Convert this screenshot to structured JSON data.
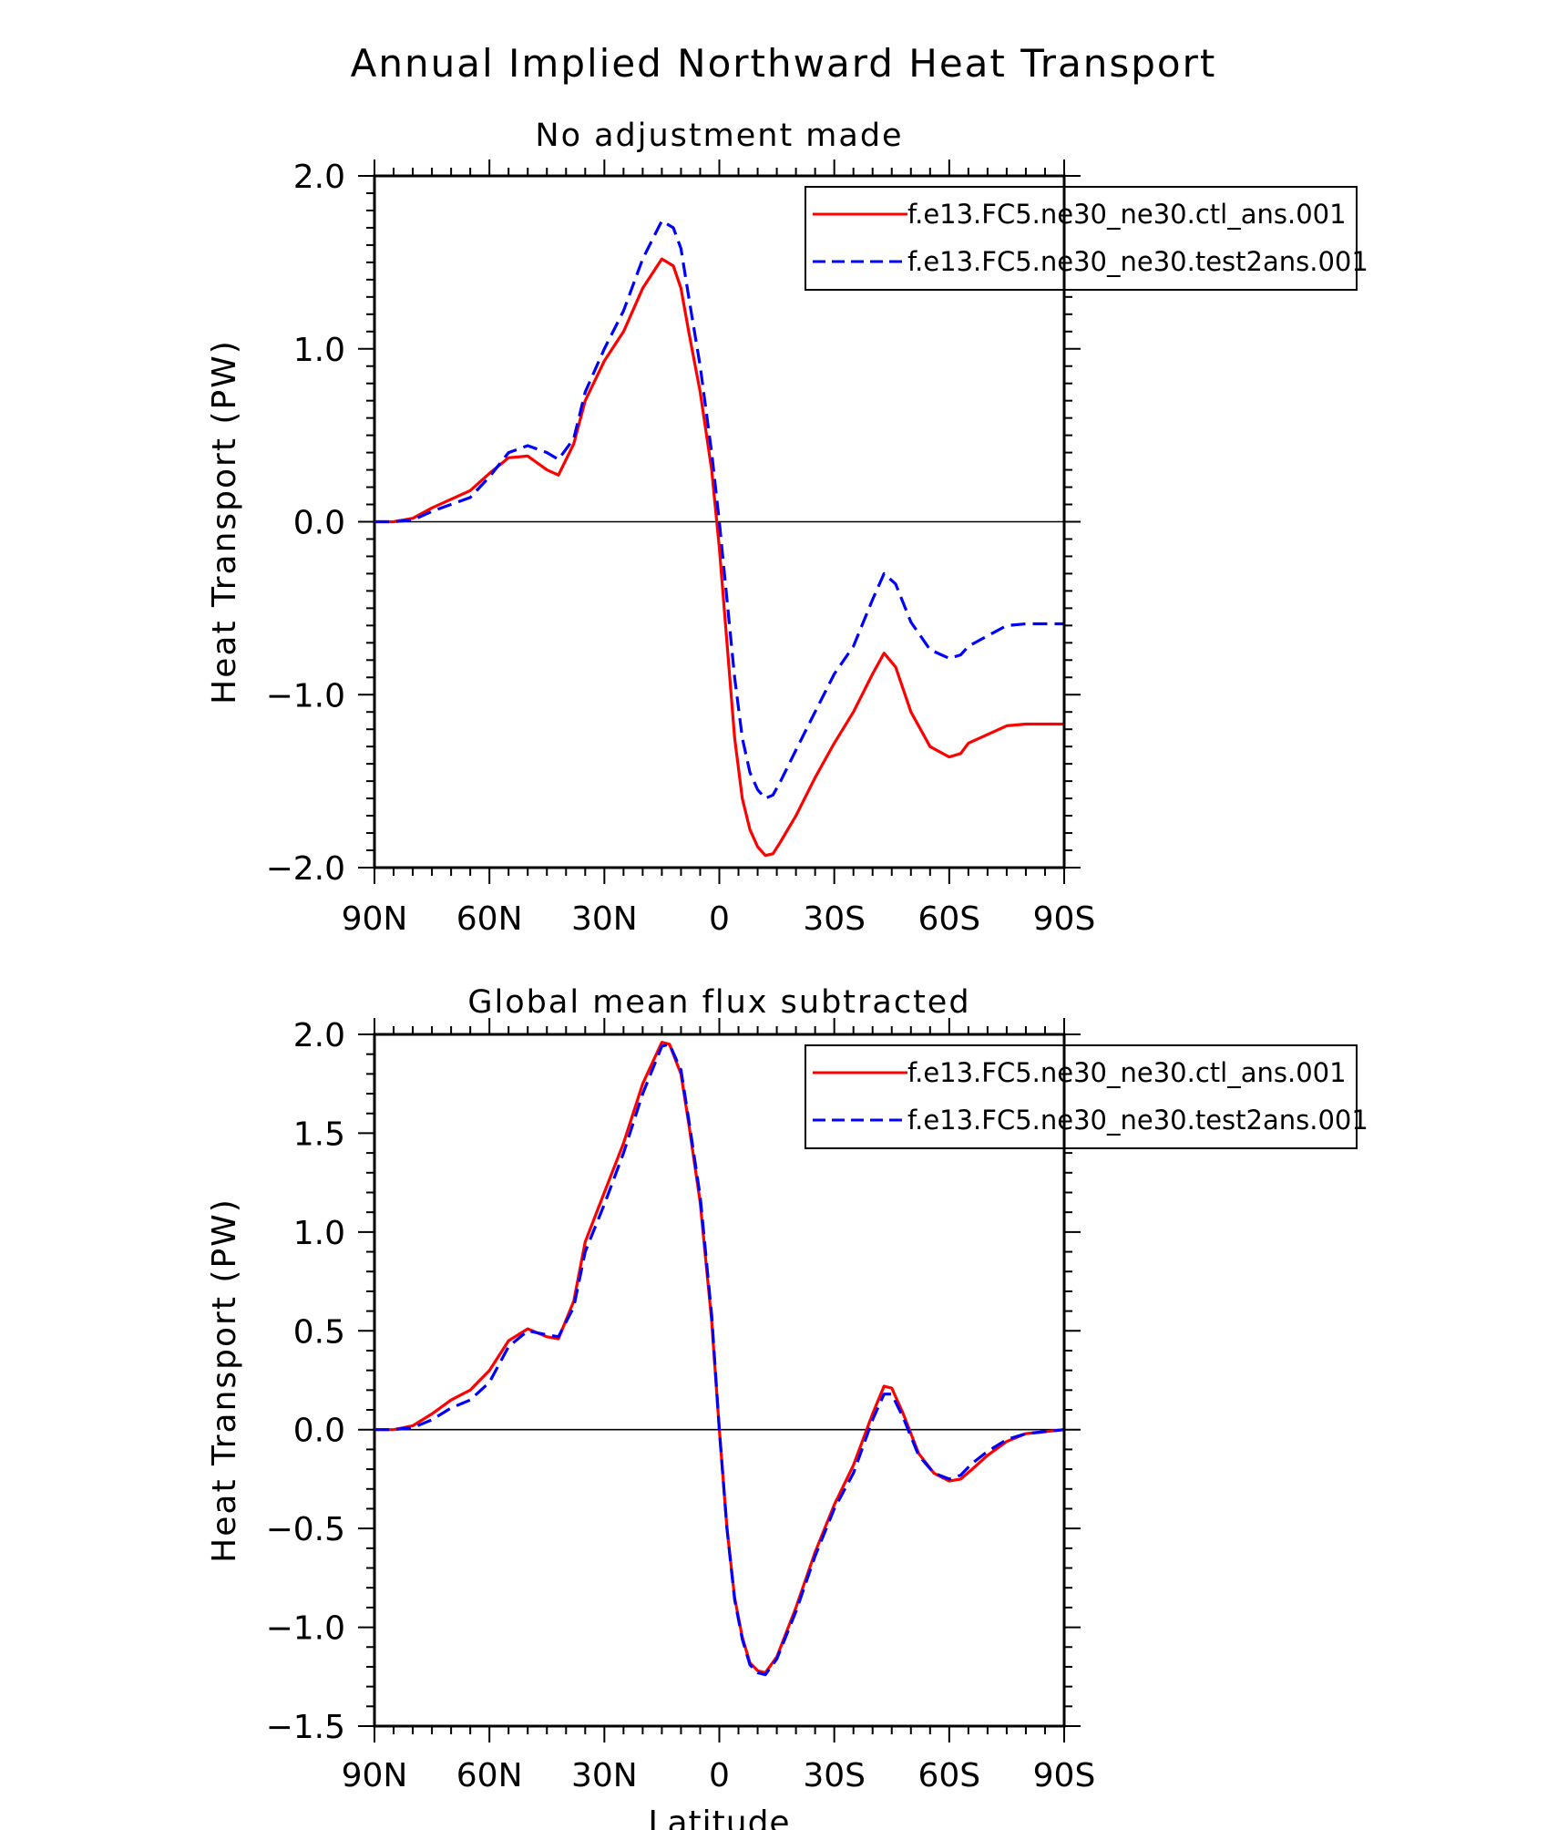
{
  "figure": {
    "title": "Annual Implied Northward Heat Transport"
  },
  "chart_data": [
    {
      "type": "line",
      "title": "No adjustment made",
      "xlabel": "",
      "ylabel": "Heat Transport (PW)",
      "xlim": [
        90,
        -90
      ],
      "ylim": [
        -2.0,
        2.0
      ],
      "x_ticks": [
        90,
        60,
        30,
        0,
        -30,
        -60,
        -90
      ],
      "x_tick_labels": [
        "90N",
        "60N",
        "30N",
        "0",
        "30S",
        "60S",
        "90S"
      ],
      "y_ticks": [
        -2.0,
        -1.0,
        0.0,
        1.0,
        2.0
      ],
      "y_tick_labels": [
        "−2.0",
        "−1.0",
        "0.0",
        "1.0",
        "2.0"
      ],
      "zero_line": true,
      "grid": false,
      "legend_position": "top-right",
      "series": [
        {
          "name": "f.e13.FC5.ne30_ne30.ctl_ans.001",
          "color": "#ff0000",
          "dash": "solid",
          "points": [
            [
              90,
              0
            ],
            [
              85,
              0.0
            ],
            [
              80,
              0.02
            ],
            [
              75,
              0.08
            ],
            [
              70,
              0.13
            ],
            [
              65,
              0.18
            ],
            [
              60,
              0.28
            ],
            [
              55,
              0.37
            ],
            [
              50,
              0.38
            ],
            [
              45,
              0.3
            ],
            [
              42,
              0.27
            ],
            [
              38,
              0.45
            ],
            [
              35,
              0.7
            ],
            [
              30,
              0.93
            ],
            [
              25,
              1.1
            ],
            [
              20,
              1.35
            ],
            [
              15,
              1.52
            ],
            [
              12,
              1.48
            ],
            [
              10,
              1.35
            ],
            [
              8,
              1.1
            ],
            [
              5,
              0.75
            ],
            [
              2,
              0.3
            ],
            [
              0,
              -0.15
            ],
            [
              -2,
              -0.7
            ],
            [
              -4,
              -1.25
            ],
            [
              -6,
              -1.6
            ],
            [
              -8,
              -1.78
            ],
            [
              -10,
              -1.88
            ],
            [
              -12,
              -1.93
            ],
            [
              -14,
              -1.92
            ],
            [
              -16,
              -1.85
            ],
            [
              -20,
              -1.7
            ],
            [
              -25,
              -1.48
            ],
            [
              -30,
              -1.28
            ],
            [
              -35,
              -1.1
            ],
            [
              -40,
              -0.88
            ],
            [
              -43,
              -0.76
            ],
            [
              -46,
              -0.84
            ],
            [
              -50,
              -1.1
            ],
            [
              -55,
              -1.3
            ],
            [
              -60,
              -1.36
            ],
            [
              -63,
              -1.34
            ],
            [
              -65,
              -1.28
            ],
            [
              -70,
              -1.23
            ],
            [
              -75,
              -1.18
            ],
            [
              -80,
              -1.17
            ],
            [
              -90,
              -1.17
            ]
          ]
        },
        {
          "name": "f.e13.FC5.ne30_ne30.test2ans.001",
          "color": "#0000ff",
          "dash": "dashed",
          "points": [
            [
              90,
              0
            ],
            [
              85,
              0.0
            ],
            [
              80,
              0.01
            ],
            [
              75,
              0.06
            ],
            [
              70,
              0.1
            ],
            [
              65,
              0.14
            ],
            [
              60,
              0.26
            ],
            [
              55,
              0.4
            ],
            [
              50,
              0.44
            ],
            [
              45,
              0.4
            ],
            [
              42,
              0.36
            ],
            [
              38,
              0.48
            ],
            [
              35,
              0.75
            ],
            [
              30,
              1.0
            ],
            [
              25,
              1.22
            ],
            [
              20,
              1.52
            ],
            [
              15,
              1.74
            ],
            [
              12,
              1.7
            ],
            [
              10,
              1.58
            ],
            [
              8,
              1.3
            ],
            [
              5,
              0.9
            ],
            [
              2,
              0.4
            ],
            [
              0,
              0.0
            ],
            [
              -2,
              -0.45
            ],
            [
              -4,
              -0.9
            ],
            [
              -6,
              -1.25
            ],
            [
              -8,
              -1.45
            ],
            [
              -10,
              -1.55
            ],
            [
              -12,
              -1.6
            ],
            [
              -14,
              -1.58
            ],
            [
              -16,
              -1.5
            ],
            [
              -20,
              -1.32
            ],
            [
              -25,
              -1.1
            ],
            [
              -30,
              -0.88
            ],
            [
              -35,
              -0.72
            ],
            [
              -40,
              -0.45
            ],
            [
              -43,
              -0.3
            ],
            [
              -46,
              -0.36
            ],
            [
              -50,
              -0.58
            ],
            [
              -55,
              -0.74
            ],
            [
              -60,
              -0.79
            ],
            [
              -63,
              -0.77
            ],
            [
              -65,
              -0.72
            ],
            [
              -70,
              -0.66
            ],
            [
              -75,
              -0.6
            ],
            [
              -80,
              -0.59
            ],
            [
              -90,
              -0.59
            ]
          ]
        }
      ]
    },
    {
      "type": "line",
      "title": "Global mean flux subtracted",
      "xlabel": "Latitude",
      "ylabel": "Heat Transport (PW)",
      "xlim": [
        90,
        -90
      ],
      "ylim": [
        -1.5,
        2.0
      ],
      "x_ticks": [
        90,
        60,
        30,
        0,
        -30,
        -60,
        -90
      ],
      "x_tick_labels": [
        "90N",
        "60N",
        "30N",
        "0",
        "30S",
        "60S",
        "90S"
      ],
      "y_ticks": [
        -1.5,
        -1.0,
        -0.5,
        0.0,
        0.5,
        1.0,
        1.5,
        2.0
      ],
      "y_tick_labels": [
        "−1.5",
        "−1.0",
        "−0.5",
        "0.0",
        "0.5",
        "1.0",
        "1.5",
        "2.0"
      ],
      "zero_line": true,
      "grid": false,
      "legend_position": "top-right",
      "series": [
        {
          "name": "f.e13.FC5.ne30_ne30.ctl_ans.001",
          "color": "#ff0000",
          "dash": "solid",
          "points": [
            [
              90,
              0
            ],
            [
              85,
              0.0
            ],
            [
              80,
              0.02
            ],
            [
              75,
              0.08
            ],
            [
              70,
              0.15
            ],
            [
              65,
              0.2
            ],
            [
              60,
              0.3
            ],
            [
              55,
              0.45
            ],
            [
              50,
              0.51
            ],
            [
              45,
              0.47
            ],
            [
              42,
              0.46
            ],
            [
              38,
              0.65
            ],
            [
              35,
              0.95
            ],
            [
              30,
              1.2
            ],
            [
              25,
              1.45
            ],
            [
              20,
              1.75
            ],
            [
              15,
              1.96
            ],
            [
              13,
              1.95
            ],
            [
              10,
              1.8
            ],
            [
              8,
              1.55
            ],
            [
              5,
              1.15
            ],
            [
              2,
              0.55
            ],
            [
              0,
              0.0
            ],
            [
              -2,
              -0.5
            ],
            [
              -4,
              -0.85
            ],
            [
              -6,
              -1.05
            ],
            [
              -8,
              -1.18
            ],
            [
              -10,
              -1.22
            ],
            [
              -12,
              -1.23
            ],
            [
              -15,
              -1.15
            ],
            [
              -20,
              -0.9
            ],
            [
              -25,
              -0.62
            ],
            [
              -30,
              -0.38
            ],
            [
              -35,
              -0.18
            ],
            [
              -40,
              0.08
            ],
            [
              -43,
              0.22
            ],
            [
              -45,
              0.21
            ],
            [
              -48,
              0.08
            ],
            [
              -52,
              -0.12
            ],
            [
              -56,
              -0.22
            ],
            [
              -60,
              -0.26
            ],
            [
              -63,
              -0.25
            ],
            [
              -66,
              -0.2
            ],
            [
              -70,
              -0.13
            ],
            [
              -75,
              -0.06
            ],
            [
              -80,
              -0.02
            ],
            [
              -85,
              -0.01
            ],
            [
              -90,
              0
            ]
          ]
        },
        {
          "name": "f.e13.FC5.ne30_ne30.test2ans.001",
          "color": "#0000ff",
          "dash": "dashed",
          "points": [
            [
              90,
              0
            ],
            [
              85,
              0.0
            ],
            [
              80,
              0.01
            ],
            [
              75,
              0.05
            ],
            [
              70,
              0.11
            ],
            [
              65,
              0.15
            ],
            [
              60,
              0.24
            ],
            [
              55,
              0.42
            ],
            [
              50,
              0.5
            ],
            [
              45,
              0.48
            ],
            [
              42,
              0.47
            ],
            [
              38,
              0.62
            ],
            [
              35,
              0.9
            ],
            [
              30,
              1.14
            ],
            [
              25,
              1.4
            ],
            [
              20,
              1.7
            ],
            [
              15,
              1.94
            ],
            [
              13,
              1.95
            ],
            [
              10,
              1.82
            ],
            [
              8,
              1.57
            ],
            [
              5,
              1.18
            ],
            [
              2,
              0.58
            ],
            [
              0,
              0.0
            ],
            [
              -2,
              -0.5
            ],
            [
              -4,
              -0.86
            ],
            [
              -6,
              -1.06
            ],
            [
              -8,
              -1.19
            ],
            [
              -10,
              -1.23
            ],
            [
              -12,
              -1.24
            ],
            [
              -15,
              -1.16
            ],
            [
              -20,
              -0.92
            ],
            [
              -25,
              -0.64
            ],
            [
              -30,
              -0.4
            ],
            [
              -35,
              -0.22
            ],
            [
              -40,
              0.05
            ],
            [
              -43,
              0.18
            ],
            [
              -45,
              0.18
            ],
            [
              -48,
              0.06
            ],
            [
              -52,
              -0.13
            ],
            [
              -56,
              -0.22
            ],
            [
              -60,
              -0.25
            ],
            [
              -63,
              -0.23
            ],
            [
              -66,
              -0.17
            ],
            [
              -70,
              -0.11
            ],
            [
              -75,
              -0.05
            ],
            [
              -80,
              -0.02
            ],
            [
              -85,
              -0.01
            ],
            [
              -90,
              0
            ]
          ]
        }
      ]
    }
  ]
}
